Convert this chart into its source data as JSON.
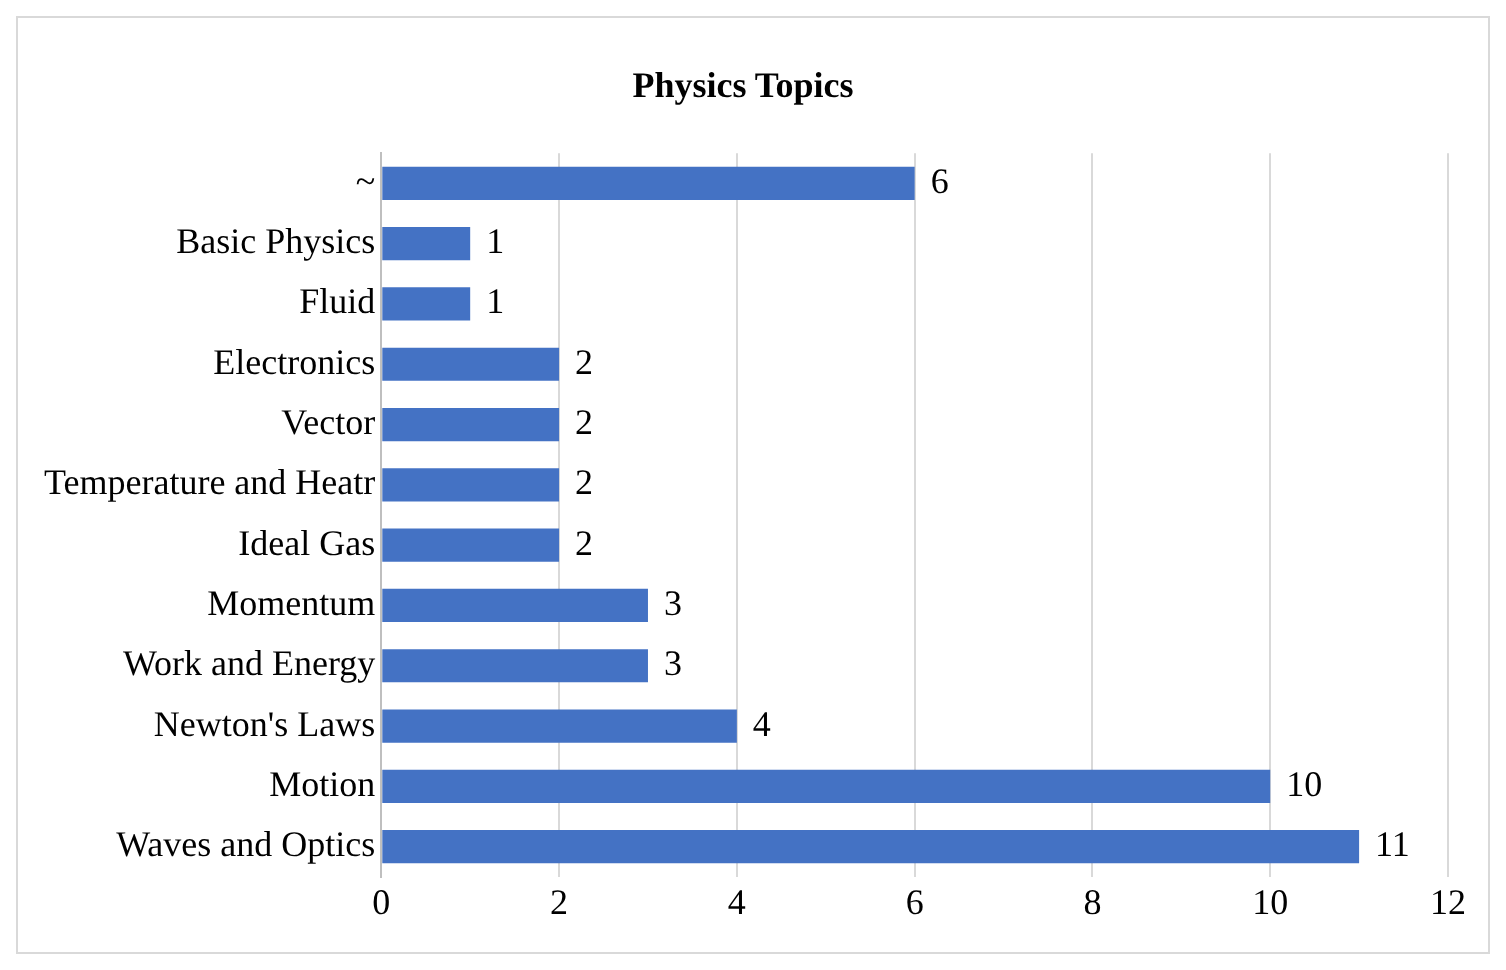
{
  "chart_data": {
    "type": "bar",
    "orientation": "horizontal",
    "title": "Physics Topics",
    "categories": [
      "~",
      "Basic Physics",
      "Fluid",
      "Electronics",
      "Vector",
      "Temperature and Heatr",
      "Ideal Gas",
      "Momentum",
      "Work and Energy",
      "Newton's Laws",
      "Motion",
      "Waves and Optics"
    ],
    "values": [
      6,
      1,
      1,
      2,
      2,
      2,
      2,
      3,
      3,
      4,
      10,
      11
    ],
    "color": "#4472c4",
    "xlim": [
      0,
      12
    ],
    "xticks": [
      0,
      2,
      4,
      6,
      8,
      10,
      12
    ],
    "grid": "x",
    "data_labels": true,
    "legend": false
  }
}
